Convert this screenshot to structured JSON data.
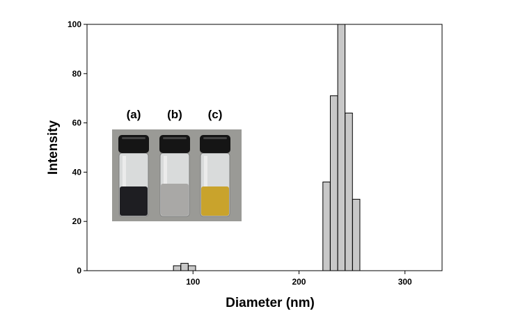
{
  "chart_data": {
    "type": "bar",
    "xlabel": "Diameter (nm)",
    "ylabel": "Intensity",
    "xlim": [
      0,
      335
    ],
    "ylim": [
      0,
      100
    ],
    "x_ticks": [
      100,
      200,
      300
    ],
    "y_ticks": [
      0,
      20,
      40,
      60,
      80,
      100
    ],
    "bin_width": 10,
    "bar_color": "#c8c8c8",
    "bar_edge_color": "#000000",
    "grid": false,
    "bins": [
      {
        "x": 85,
        "value": 2
      },
      {
        "x": 92,
        "value": 3
      },
      {
        "x": 99,
        "value": 2
      },
      {
        "x": 226,
        "value": 36
      },
      {
        "x": 233,
        "value": 71
      },
      {
        "x": 240,
        "value": 100
      },
      {
        "x": 247,
        "value": 64
      },
      {
        "x": 254,
        "value": 29
      }
    ]
  },
  "inset": {
    "labels": [
      "(a)",
      "(b)",
      "(c)"
    ],
    "vials": [
      {
        "liquid_color": "#1e1e22",
        "cap_color": "#151515"
      },
      {
        "liquid_color": "#a9a8a6",
        "cap_color": "#151515"
      },
      {
        "liquid_color": "#c9a32c",
        "cap_color": "#151515"
      }
    ],
    "background_color": "#9a9a96"
  }
}
